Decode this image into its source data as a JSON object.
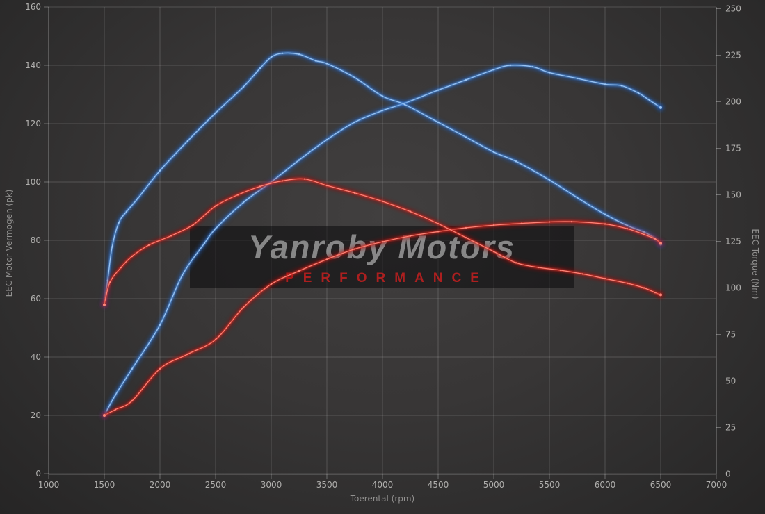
{
  "watermark": {
    "title": "Yanroby Motors",
    "subtitle": "PERFORMANCE"
  },
  "axes": {
    "x": {
      "title": "Toerental (rpm)",
      "min": 1000,
      "max": 7000,
      "step": 500,
      "ticks": [
        "1000",
        "1500",
        "2000",
        "2500",
        "3000",
        "3500",
        "4000",
        "4500",
        "5000",
        "5500",
        "6000",
        "6500",
        "7000"
      ]
    },
    "y_left": {
      "title": "EEC Motor Vermogen (pk)",
      "min": 0,
      "max": 160,
      "step": 20,
      "ticks": [
        "0",
        "20",
        "40",
        "60",
        "80",
        "100",
        "120",
        "140",
        "160"
      ]
    },
    "y_right": {
      "title": "EEC Torque (Nm)",
      "min": 0,
      "max": 250,
      "step": 25,
      "ticks": [
        "0",
        "25",
        "50",
        "75",
        "100",
        "125",
        "150",
        "175",
        "200",
        "225",
        "250"
      ]
    }
  },
  "colors": {
    "background": "#383636",
    "grid": "rgba(255,255,255,0.17)",
    "frame": "rgba(255,255,255,0.30)",
    "blue_glow": "#1c5fc2",
    "blue_core": "#5b9be6",
    "blue_bright": "#9ec7f5",
    "red_glow": "#a31111",
    "red_core": "#e03226",
    "red_bright": "#ff8a7d",
    "watermark_box": "rgba(8,8,10,0.52)"
  },
  "chart_data": {
    "type": "line",
    "title": "",
    "xlabel": "Toerental (rpm)",
    "ylabel_left": "EEC Motor Vermogen (pk)",
    "ylabel_right": "EEC Torque (Nm)",
    "x_range": [
      1000,
      7000
    ],
    "y_left_range": [
      0,
      160
    ],
    "y_right_range": [
      0,
      250
    ],
    "grid": true,
    "legend": false,
    "series": [
      {
        "name": "blue-power-pk",
        "color": "blue",
        "axis": "left",
        "unit": "pk",
        "points": [
          [
            1500,
            20
          ],
          [
            1600,
            27
          ],
          [
            1750,
            36
          ],
          [
            2000,
            51
          ],
          [
            2200,
            68
          ],
          [
            2400,
            79
          ],
          [
            2500,
            84
          ],
          [
            2750,
            93
          ],
          [
            3000,
            100
          ],
          [
            3250,
            107.5
          ],
          [
            3500,
            114.5
          ],
          [
            3750,
            120.5
          ],
          [
            4000,
            124.5
          ],
          [
            4200,
            127
          ],
          [
            4500,
            131.5
          ],
          [
            4750,
            135
          ],
          [
            5000,
            138.5
          ],
          [
            5150,
            140
          ],
          [
            5350,
            139.5
          ],
          [
            5500,
            137.5
          ],
          [
            5750,
            135.5
          ],
          [
            6000,
            133.5
          ],
          [
            6150,
            133
          ],
          [
            6300,
            130.5
          ],
          [
            6400,
            128
          ],
          [
            6500,
            125.5
          ]
        ]
      },
      {
        "name": "blue-torque-nm",
        "color": "blue",
        "axis": "right",
        "unit": "Nm",
        "points": [
          [
            1500,
            91
          ],
          [
            1530,
            104
          ],
          [
            1570,
            122
          ],
          [
            1630,
            135
          ],
          [
            1700,
            141
          ],
          [
            1800,
            148
          ],
          [
            2000,
            163
          ],
          [
            2250,
            179
          ],
          [
            2500,
            194
          ],
          [
            2750,
            208
          ],
          [
            2900,
            218
          ],
          [
            3000,
            224
          ],
          [
            3100,
            226
          ],
          [
            3250,
            225.5
          ],
          [
            3400,
            222
          ],
          [
            3500,
            220.5
          ],
          [
            3750,
            213
          ],
          [
            4000,
            203
          ],
          [
            4200,
            198.5
          ],
          [
            4500,
            189
          ],
          [
            4750,
            181
          ],
          [
            5000,
            173
          ],
          [
            5200,
            168
          ],
          [
            5500,
            158
          ],
          [
            5750,
            148.5
          ],
          [
            6000,
            139.5
          ],
          [
            6200,
            133.5
          ],
          [
            6350,
            130
          ],
          [
            6450,
            126.5
          ],
          [
            6500,
            123.5
          ]
        ]
      },
      {
        "name": "red-power-pk",
        "color": "red",
        "axis": "left",
        "unit": "pk",
        "points": [
          [
            1500,
            20
          ],
          [
            1600,
            22
          ],
          [
            1750,
            25
          ],
          [
            2000,
            36
          ],
          [
            2250,
            41
          ],
          [
            2500,
            46
          ],
          [
            2750,
            57
          ],
          [
            3000,
            65
          ],
          [
            3250,
            69.5
          ],
          [
            3500,
            73.5
          ],
          [
            3750,
            77
          ],
          [
            4000,
            79.5
          ],
          [
            4250,
            81.5
          ],
          [
            4500,
            83
          ],
          [
            4750,
            84.3
          ],
          [
            5000,
            85.2
          ],
          [
            5250,
            85.8
          ],
          [
            5500,
            86.3
          ],
          [
            5700,
            86.4
          ],
          [
            6000,
            85.6
          ],
          [
            6200,
            84
          ],
          [
            6350,
            82
          ],
          [
            6450,
            80.5
          ],
          [
            6500,
            79
          ]
        ]
      },
      {
        "name": "red-torque-nm",
        "color": "red",
        "axis": "right",
        "unit": "Nm",
        "points": [
          [
            1500,
            91
          ],
          [
            1550,
            103
          ],
          [
            1650,
            111
          ],
          [
            1750,
            117
          ],
          [
            1900,
            123
          ],
          [
            2100,
            128
          ],
          [
            2300,
            134
          ],
          [
            2500,
            144
          ],
          [
            2700,
            150
          ],
          [
            2900,
            154.5
          ],
          [
            3100,
            157.5
          ],
          [
            3300,
            158.5
          ],
          [
            3500,
            155
          ],
          [
            3750,
            151
          ],
          [
            4000,
            146.5
          ],
          [
            4250,
            141
          ],
          [
            4500,
            134.5
          ],
          [
            4750,
            127
          ],
          [
            5000,
            119.5
          ],
          [
            5200,
            113.5
          ],
          [
            5400,
            111
          ],
          [
            5600,
            109.5
          ],
          [
            5800,
            107.5
          ],
          [
            6000,
            105
          ],
          [
            6200,
            102.5
          ],
          [
            6350,
            100
          ],
          [
            6450,
            97.5
          ],
          [
            6500,
            96.3
          ]
        ]
      }
    ]
  }
}
